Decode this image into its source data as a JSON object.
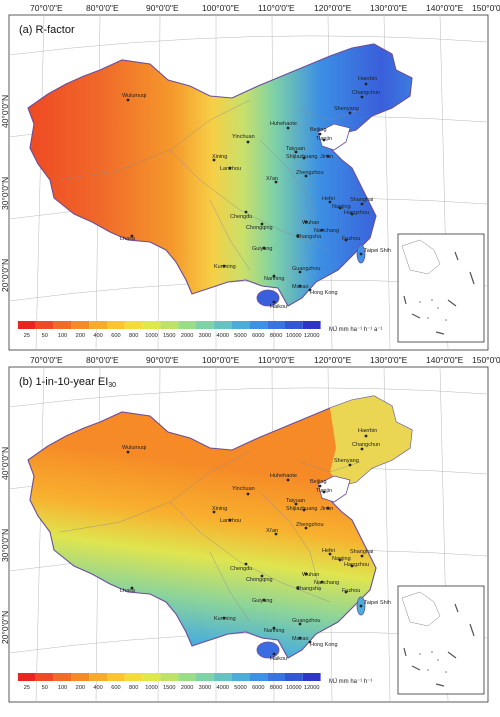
{
  "panels": [
    {
      "title": "(a) R-factor",
      "title_sub": "",
      "legend_unit": "MJ mm ha⁻¹ h⁻¹ a⁻¹",
      "gradient": "east-west"
    },
    {
      "title": "(b) 1-in-10-year EI",
      "title_sub": "30",
      "legend_unit": "MJ mm ha⁻¹ h⁻¹",
      "gradient": "south-north"
    }
  ],
  "graticule": {
    "top_labels": [
      "70°0'0\"E",
      "80°0'0\"E",
      "90°0'0\"E",
      "100°0'0\"E",
      "110°0'0\"E",
      "120°0'0\"E",
      "130°0'0\"E",
      "140°0'0\"E",
      "150°0'0\"E"
    ],
    "left_labels": [
      "40°0'0\"N",
      "30°0'0\"N",
      "20°0'0\"N"
    ]
  },
  "legend": {
    "classes": [
      "25",
      "50",
      "100",
      "200",
      "400",
      "600",
      "800",
      "1000",
      "1500",
      "2000",
      "3000",
      "4000",
      "5000",
      "6000",
      "8000",
      "10000",
      "12000"
    ],
    "colors": [
      "#e8251f",
      "#ef4a23",
      "#f26b25",
      "#f58a27",
      "#f8aa2a",
      "#fbc52f",
      "#f3dc3a",
      "#dfe84b",
      "#bde266",
      "#9bdc86",
      "#7fd2a6",
      "#63c4c2",
      "#4aaedb",
      "#3c92e6",
      "#3a74e0",
      "#3557d6",
      "#2f35c8"
    ]
  },
  "cities": [
    "Haerbin",
    "Changchun",
    "Shenyang",
    "Beijing",
    "Tianjin",
    "Huhehaote",
    "Yinchuan",
    "Taiyuan",
    "Shijiazhuang",
    "Jinan",
    "Xining",
    "Lanzhou",
    "Xi'an",
    "Zhengzhou",
    "Hefei",
    "Nanjing",
    "Shanghai",
    "Hangzhou",
    "Chengdu",
    "Chongqing",
    "Wuhan",
    "Changsha",
    "Nanchang",
    "Fuzhou",
    "Taipei Shih",
    "Guiyang",
    "Kunming",
    "Nanning",
    "Guangzhou",
    "Macao",
    "Hong Kong",
    "Haikou",
    "Lhasa",
    "Wulumuqi"
  ]
}
